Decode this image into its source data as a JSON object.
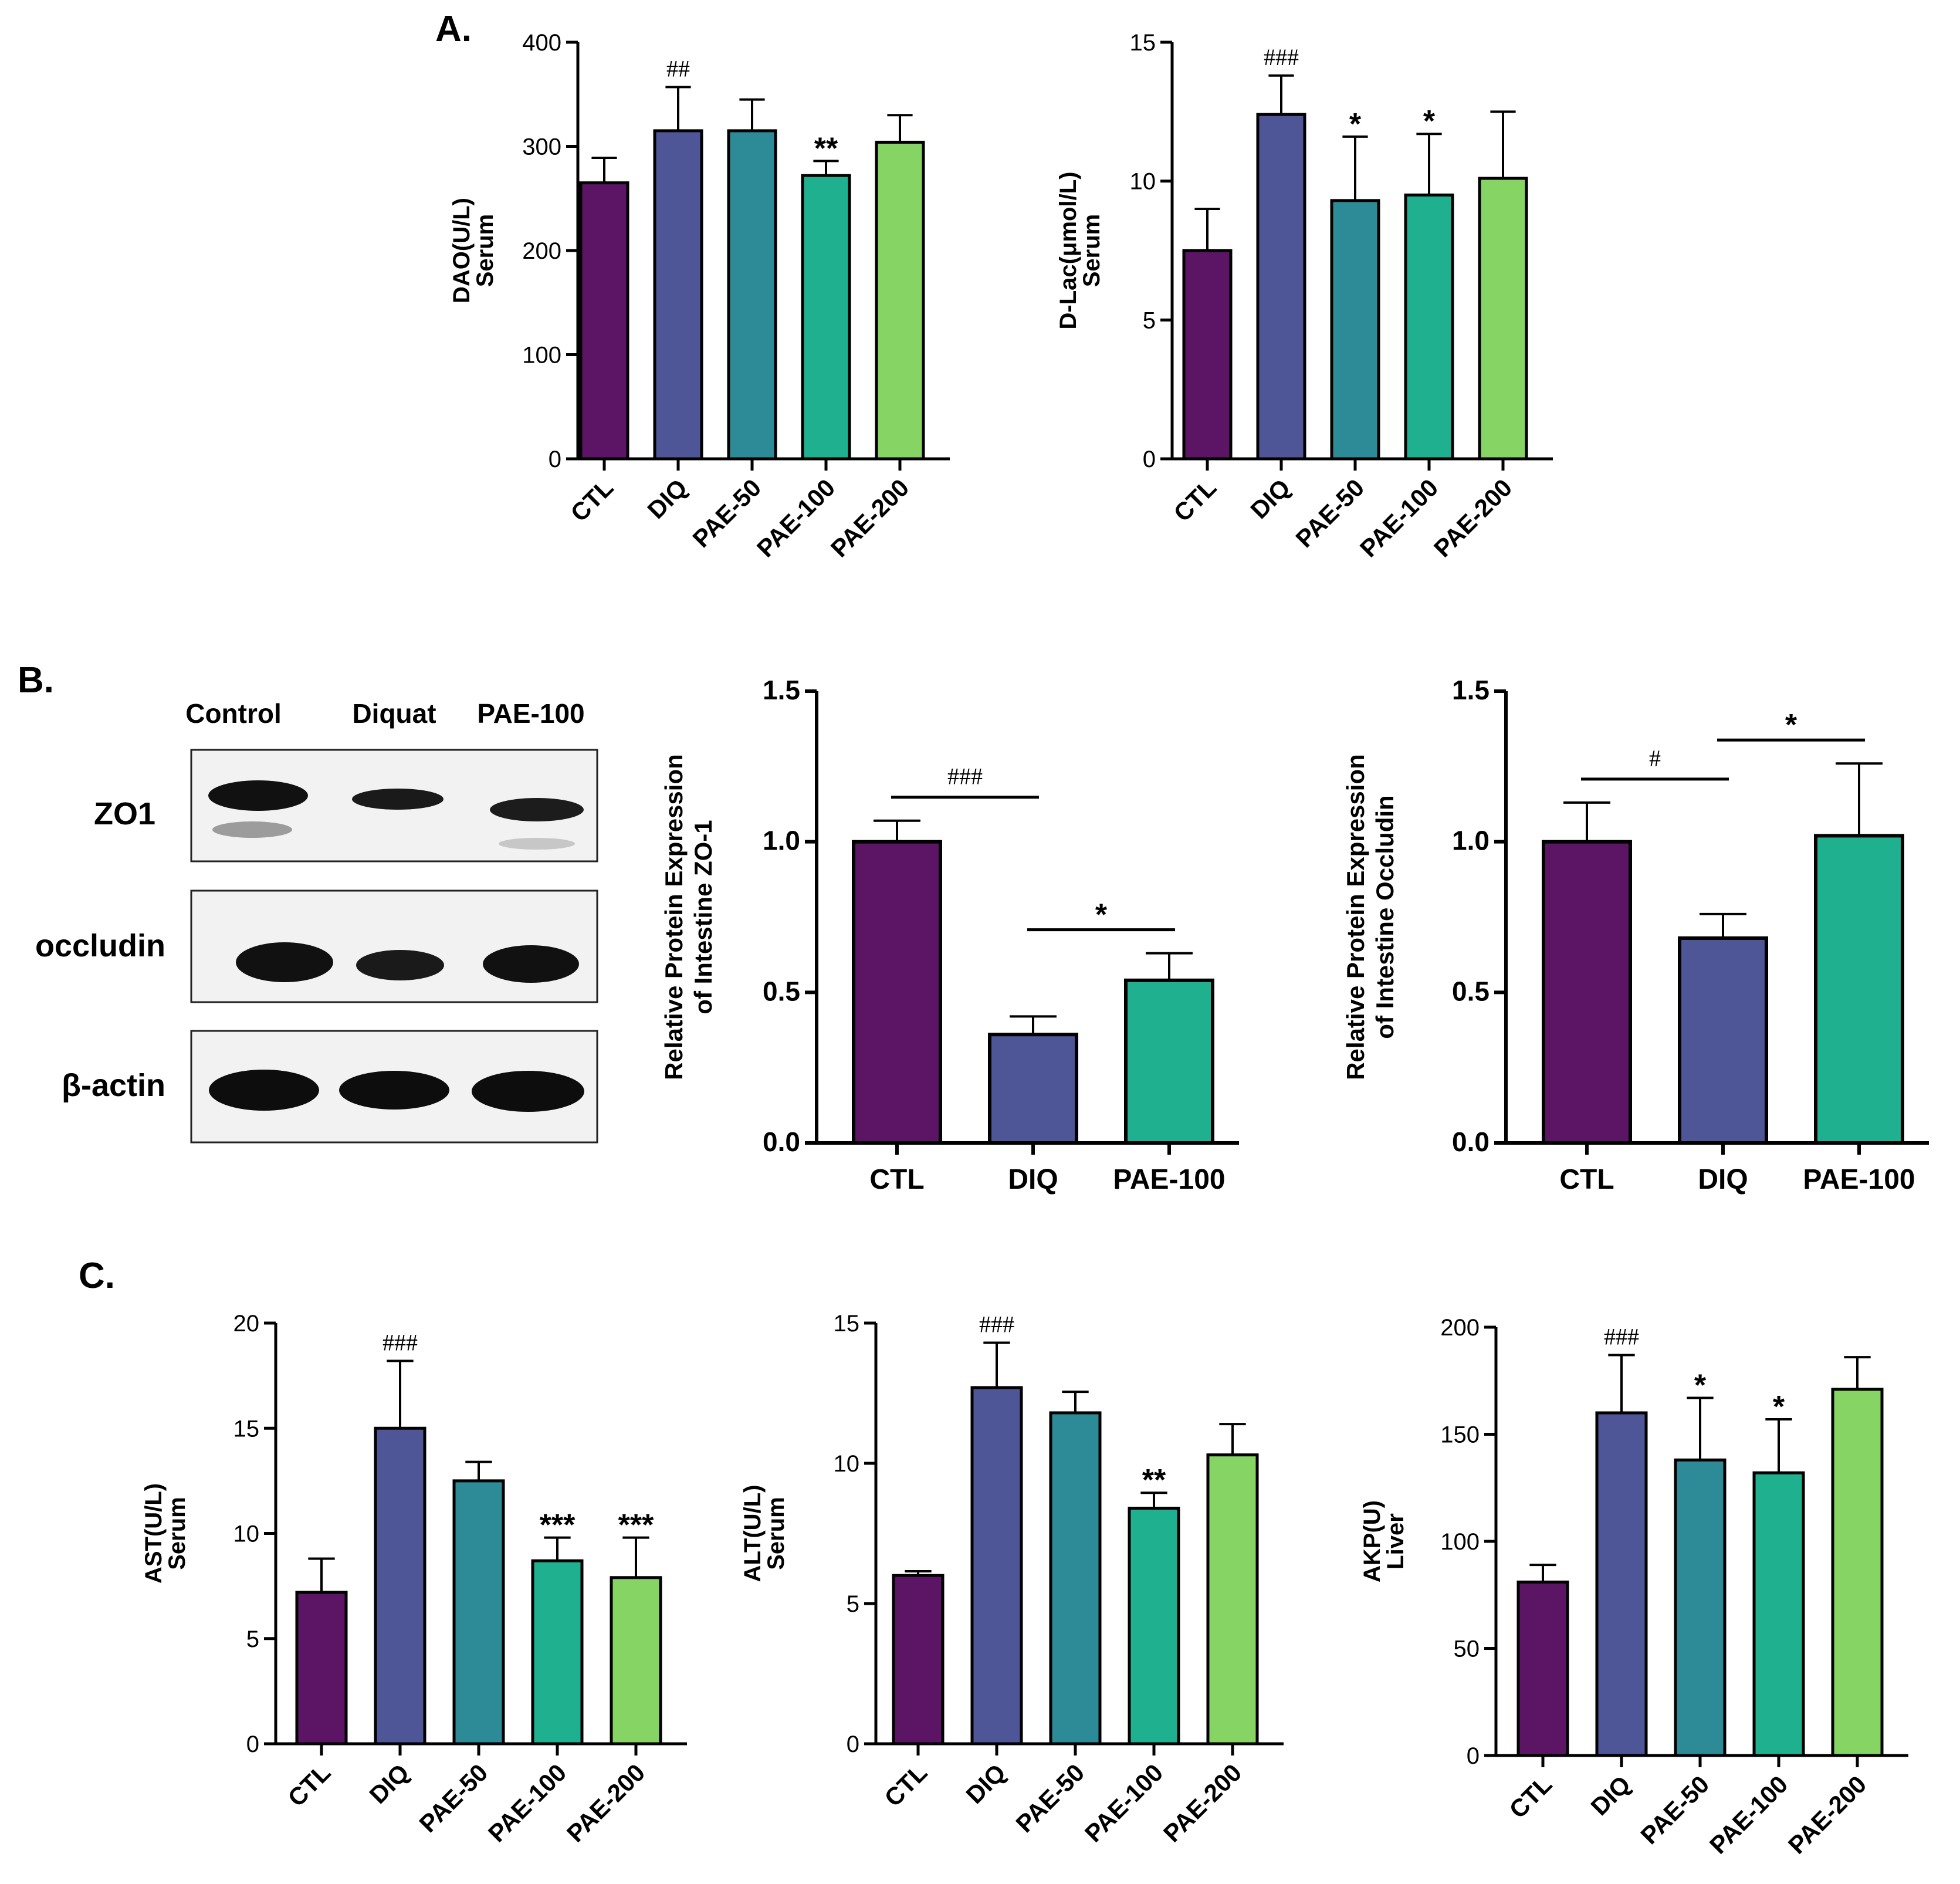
{
  "panel_labels": {
    "a": "A.",
    "b": "B.",
    "c": "C."
  },
  "colors": {
    "CTL": "#5b1564",
    "DIQ": "#4f5697",
    "PAE-50": "#2d8a97",
    "PAE-100": "#1fb08f",
    "PAE-200": "#86d464",
    "axis": "#000000"
  },
  "blot": {
    "columns": [
      "Control",
      "Diquat",
      "PAE-100"
    ],
    "rows": [
      "ZO1",
      "occludin",
      "β-actin"
    ]
  },
  "chart_data": [
    {
      "id": "dao",
      "type": "bar",
      "categories": [
        "CTL",
        "DIQ",
        "PAE-50",
        "PAE-100",
        "PAE-200"
      ],
      "values": [
        265,
        315,
        315,
        272,
        304
      ],
      "errors": [
        24,
        42,
        30,
        14,
        26
      ],
      "annotations": [
        "",
        "##",
        "",
        "**",
        ""
      ],
      "ylabel": [
        "DAO(U/L)",
        "Serum"
      ],
      "ylim": [
        0,
        400
      ],
      "yticks": [
        0,
        100,
        200,
        300,
        400
      ],
      "grid": false
    },
    {
      "id": "dlac",
      "type": "bar",
      "categories": [
        "CTL",
        "DIQ",
        "PAE-50",
        "PAE-100",
        "PAE-200"
      ],
      "values": [
        7.5,
        12.4,
        9.3,
        9.5,
        10.1
      ],
      "errors": [
        1.5,
        1.4,
        2.3,
        2.2,
        2.4
      ],
      "annotations": [
        "",
        "###",
        "*",
        "*",
        ""
      ],
      "ylabel": [
        "D-Lac(μmol/L)",
        "Serum"
      ],
      "ylim": [
        0,
        15
      ],
      "yticks": [
        0,
        5,
        10,
        15
      ],
      "grid": false
    },
    {
      "id": "zo1",
      "type": "bar",
      "categories": [
        "CTL",
        "DIQ",
        "PAE-100"
      ],
      "values": [
        1.0,
        0.36,
        0.54
      ],
      "errors": [
        0.07,
        0.06,
        0.09
      ],
      "comparisons": [
        {
          "from": 0,
          "to": 1,
          "label": "###"
        },
        {
          "from": 1,
          "to": 2,
          "label": "*"
        }
      ],
      "ylabel": [
        "Relative Protein Expression",
        "of  Intestine ZO-1"
      ],
      "ylim": [
        0,
        1.5
      ],
      "yticks": [
        "0.0",
        "0.5",
        "1.0",
        "1.5"
      ],
      "grid": false
    },
    {
      "id": "occludin",
      "type": "bar",
      "categories": [
        "CTL",
        "DIQ",
        "PAE-100"
      ],
      "values": [
        1.0,
        0.68,
        1.02
      ],
      "errors": [
        0.13,
        0.08,
        0.24
      ],
      "comparisons": [
        {
          "from": 0,
          "to": 1,
          "label": "#"
        },
        {
          "from": 1,
          "to": 2,
          "label": "*"
        }
      ],
      "ylabel": [
        "Relative Protein Expression",
        "of  Intestine Occludin"
      ],
      "ylim": [
        0,
        1.5
      ],
      "yticks": [
        "0.0",
        "0.5",
        "1.0",
        "1.5"
      ],
      "grid": false
    },
    {
      "id": "ast",
      "type": "bar",
      "categories": [
        "CTL",
        "DIQ",
        "PAE-50",
        "PAE-100",
        "PAE-200"
      ],
      "values": [
        7.2,
        15.0,
        12.5,
        8.7,
        7.9
      ],
      "errors": [
        1.6,
        3.2,
        0.9,
        1.1,
        1.9
      ],
      "annotations": [
        "",
        "###",
        "",
        "***",
        "***"
      ],
      "ylabel": [
        "AST(U/L)",
        "Serum"
      ],
      "ylim": [
        0,
        20
      ],
      "yticks": [
        0,
        5,
        10,
        15,
        20
      ],
      "grid": false
    },
    {
      "id": "alt",
      "type": "bar",
      "categories": [
        "CTL",
        "DIQ",
        "PAE-50",
        "PAE-100",
        "PAE-200"
      ],
      "values": [
        6.0,
        12.7,
        11.8,
        8.4,
        10.3
      ],
      "errors": [
        0.15,
        1.6,
        0.75,
        0.55,
        1.1
      ],
      "annotations": [
        "",
        "###",
        "",
        "**",
        ""
      ],
      "ylabel": [
        "ALT(U/L)",
        "Serum"
      ],
      "ylim": [
        0,
        15
      ],
      "yticks": [
        0,
        5,
        10,
        15
      ],
      "grid": false
    },
    {
      "id": "akp",
      "type": "bar",
      "categories": [
        "CTL",
        "DIQ",
        "PAE-50",
        "PAE-100",
        "PAE-200"
      ],
      "values": [
        81,
        160,
        138,
        132,
        171
      ],
      "errors": [
        8,
        27,
        29,
        25,
        15
      ],
      "annotations": [
        "",
        "###",
        "*",
        "*",
        ""
      ],
      "ylabel": [
        "AKP(U)",
        "Liver"
      ],
      "ylim": [
        0,
        200
      ],
      "yticks": [
        0,
        50,
        100,
        150,
        200
      ],
      "grid": false
    }
  ]
}
